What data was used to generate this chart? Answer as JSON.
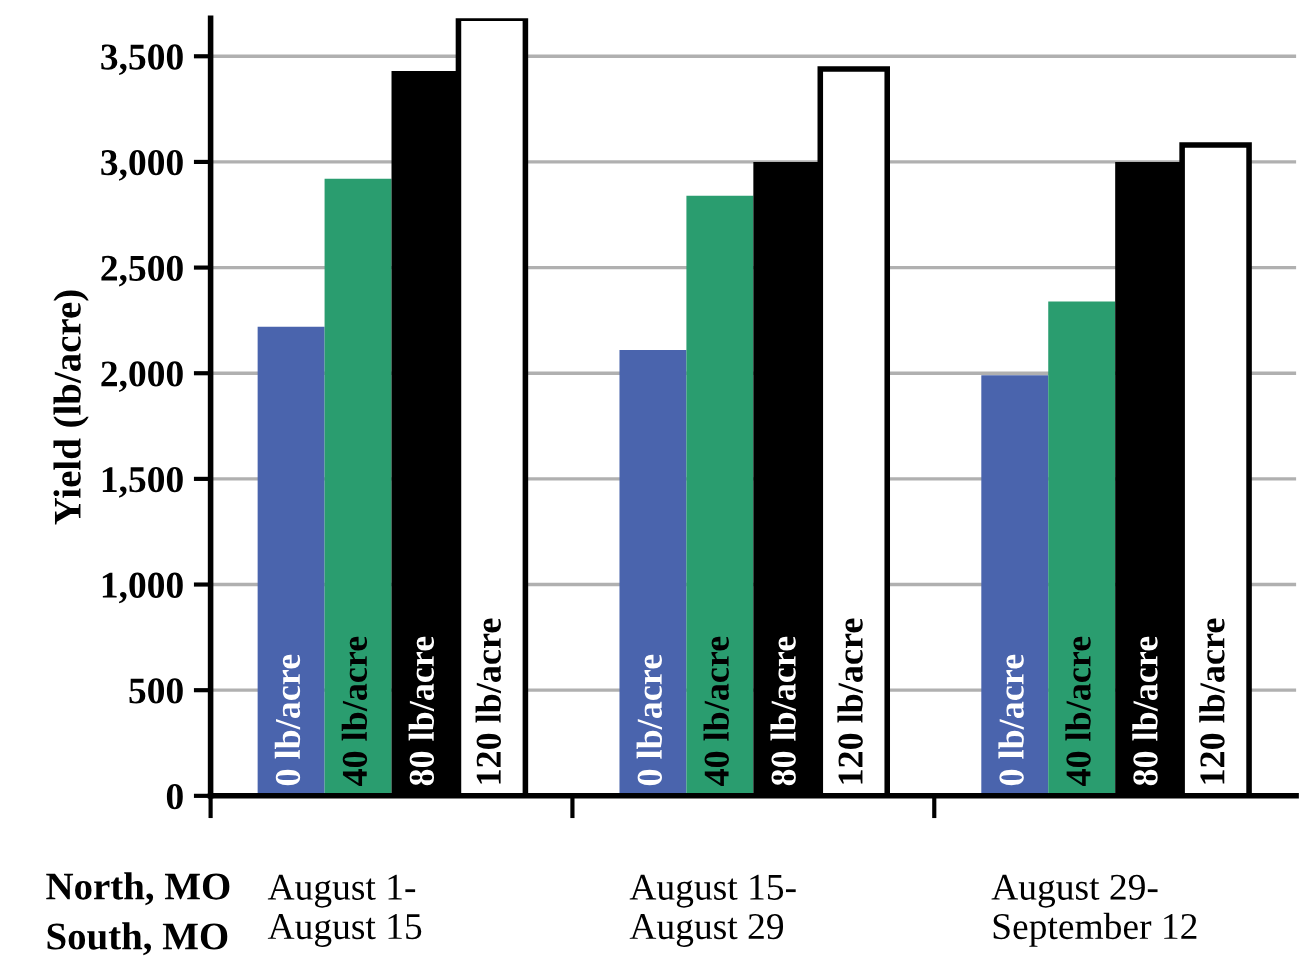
{
  "chart_data": {
    "type": "bar",
    "ylabel": "Yield (lb/acre)",
    "categories": [
      "August 1-\nAugust 15",
      "August 15-\nAugust 29",
      "August 29-\nSeptember 12"
    ],
    "series": [
      {
        "name": "0 lb/acre",
        "color": "#4a64ad",
        "values": [
          2220,
          2110,
          1990
        ]
      },
      {
        "name": "40 lb/acre",
        "color": "#2a9d6f",
        "values": [
          2920,
          2840,
          2340
        ]
      },
      {
        "name": "80 lb/acre",
        "color": "#000000",
        "values": [
          3430,
          3000,
          3000
        ]
      },
      {
        "name": "120 lb/acre",
        "color": "#ffffff",
        "values": [
          3680,
          3440,
          3080
        ]
      }
    ],
    "ylim": [
      0,
      3680
    ],
    "yticks": [
      {
        "value": 0,
        "label": "0"
      },
      {
        "value": 500,
        "label": "500"
      },
      {
        "value": 1000,
        "label": "1,000"
      },
      {
        "value": 1500,
        "label": "1,500"
      },
      {
        "value": 2000,
        "label": "2,000"
      },
      {
        "value": 2500,
        "label": "2,500"
      },
      {
        "value": 3000,
        "label": "3,000"
      },
      {
        "value": 3500,
        "label": "3,500"
      }
    ],
    "grid": "y",
    "legend": false,
    "annotations": [
      "North, MO",
      "South, MO"
    ]
  }
}
